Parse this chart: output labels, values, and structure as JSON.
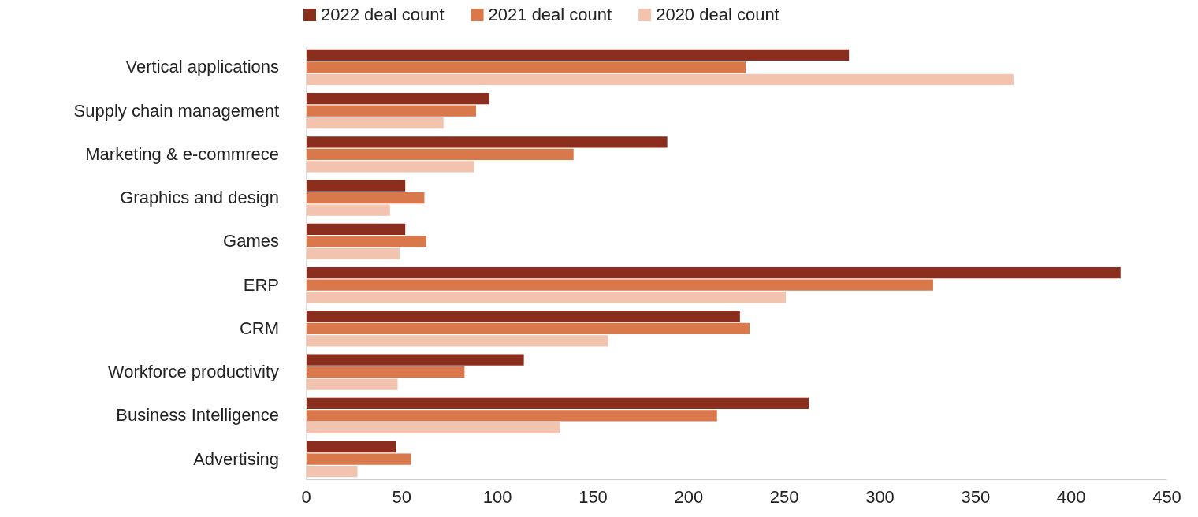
{
  "chart_data": {
    "type": "bar",
    "orientation": "horizontal",
    "legend": "top",
    "grid": false,
    "categories": [
      "Vertical applications",
      "Supply chain management",
      "Marketing & e-commrece",
      "Graphics and design",
      "Games",
      "ERP",
      "CRM",
      "Workforce productivity",
      "Business Intelligence",
      "Advertising"
    ],
    "series": [
      {
        "name": "2022 deal count",
        "color": "#8b2e1e",
        "values": [
          284,
          96,
          189,
          52,
          52,
          426,
          227,
          114,
          263,
          47
        ]
      },
      {
        "name": "2021 deal count",
        "color": "#d9784a",
        "values": [
          230,
          89,
          140,
          62,
          63,
          328,
          232,
          83,
          215,
          55
        ]
      },
      {
        "name": "2020 deal count",
        "color": "#f2c4b0",
        "values": [
          370,
          72,
          88,
          44,
          49,
          251,
          158,
          48,
          133,
          27
        ]
      }
    ],
    "xlim": [
      0,
      450
    ],
    "xticks": [
      0,
      50,
      100,
      150,
      200,
      250,
      300,
      350,
      400,
      450
    ]
  }
}
